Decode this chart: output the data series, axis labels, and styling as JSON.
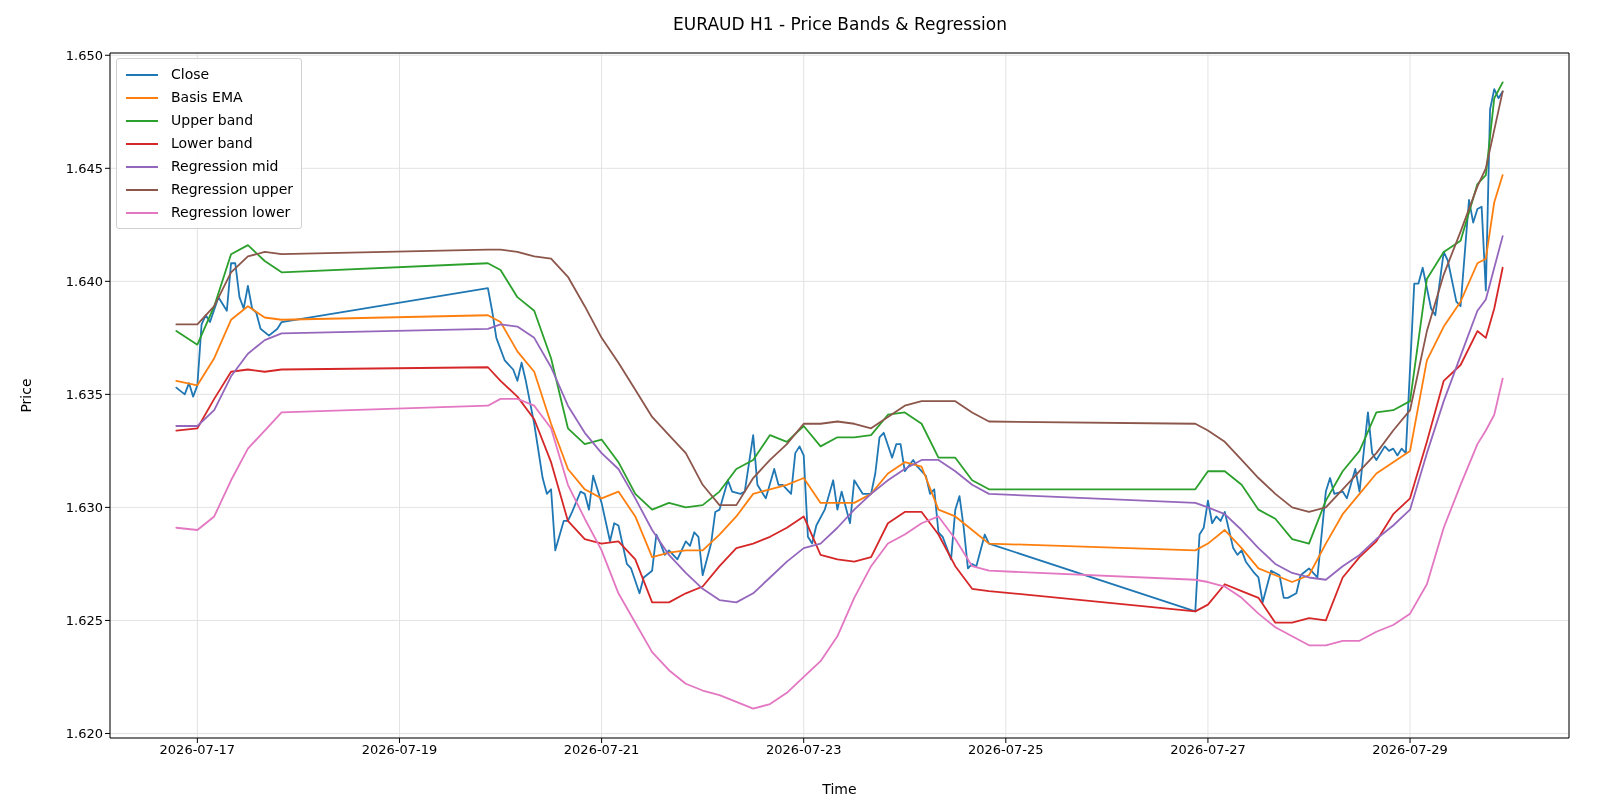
{
  "chart_data": {
    "type": "line",
    "title": "EURAUD H1 - Price Bands & Regression",
    "xlabel": "Time",
    "ylabel": "Price",
    "xlim": [
      "2026-07-16T03:15",
      "2026-07-30T13:45"
    ],
    "xticks": [
      "2026-07-17",
      "2026-07-19",
      "2026-07-21",
      "2026-07-23",
      "2026-07-25",
      "2026-07-27",
      "2026-07-29"
    ],
    "ylim": [
      1.6198,
      1.6501
    ],
    "yticks": [
      {
        "value": 1.62,
        "label": "1.620"
      },
      {
        "value": 1.625,
        "label": "1.625"
      },
      {
        "value": 1.63,
        "label": "1.630"
      },
      {
        "value": 1.635,
        "label": "1.635"
      },
      {
        "value": 1.64,
        "label": "1.640"
      },
      {
        "value": 1.645,
        "label": "1.645"
      },
      {
        "value": 1.65,
        "label": "1.650"
      }
    ],
    "grid": true,
    "legend": "top left",
    "marker": "none",
    "line_style": "solid",
    "x": [
      "2026-07-16T19:00",
      "2026-07-17T00:00",
      "2026-07-17T04:00",
      "2026-07-17T08:00",
      "2026-07-17T12:00",
      "2026-07-17T16:00",
      "2026-07-17T20:00",
      "2026-07-19T21:00",
      "2026-07-20T00:00",
      "2026-07-20T04:00",
      "2026-07-20T08:00",
      "2026-07-20T12:00",
      "2026-07-20T16:00",
      "2026-07-20T20:00",
      "2026-07-21T00:00",
      "2026-07-21T04:00",
      "2026-07-21T08:00",
      "2026-07-21T12:00",
      "2026-07-21T16:00",
      "2026-07-21T20:00",
      "2026-07-22T00:00",
      "2026-07-22T04:00",
      "2026-07-22T08:00",
      "2026-07-22T12:00",
      "2026-07-22T16:00",
      "2026-07-22T20:00",
      "2026-07-23T00:00",
      "2026-07-23T04:00",
      "2026-07-23T08:00",
      "2026-07-23T12:00",
      "2026-07-23T16:00",
      "2026-07-23T20:00",
      "2026-07-24T00:00",
      "2026-07-24T04:00",
      "2026-07-24T08:00",
      "2026-07-24T12:00",
      "2026-07-24T16:00",
      "2026-07-24T20:00",
      "2026-07-26T21:00",
      "2026-07-27T00:00",
      "2026-07-27T04:00",
      "2026-07-27T08:00",
      "2026-07-27T12:00",
      "2026-07-27T16:00",
      "2026-07-27T20:00",
      "2026-07-28T00:00",
      "2026-07-28T04:00",
      "2026-07-28T08:00",
      "2026-07-28T12:00",
      "2026-07-28T16:00",
      "2026-07-28T20:00",
      "2026-07-29T00:00",
      "2026-07-29T04:00",
      "2026-07-29T08:00",
      "2026-07-29T12:00",
      "2026-07-29T16:00",
      "2026-07-29T18:00",
      "2026-07-29T20:00",
      "2026-07-29T22:00"
    ],
    "series": [
      {
        "name": "Close",
        "color": "#1f77b4",
        "x": [
          "2026-07-16T19:00",
          "2026-07-16T21:00",
          "2026-07-16T22:00",
          "2026-07-16T23:00",
          "2026-07-17T00:00",
          "2026-07-17T01:00",
          "2026-07-17T02:00",
          "2026-07-17T03:00",
          "2026-07-17T05:00",
          "2026-07-17T07:00",
          "2026-07-17T08:00",
          "2026-07-17T09:00",
          "2026-07-17T10:00",
          "2026-07-17T11:00",
          "2026-07-17T12:00",
          "2026-07-17T13:00",
          "2026-07-17T14:00",
          "2026-07-17T15:00",
          "2026-07-17T17:00",
          "2026-07-17T19:00",
          "2026-07-17T20:00",
          "2026-07-19T21:00",
          "2026-07-19T22:00",
          "2026-07-19T23:00",
          "2026-07-20T01:00",
          "2026-07-20T03:00",
          "2026-07-20T04:00",
          "2026-07-20T05:00",
          "2026-07-20T06:00",
          "2026-07-20T08:00",
          "2026-07-20T10:00",
          "2026-07-20T11:00",
          "2026-07-20T12:00",
          "2026-07-20T13:00",
          "2026-07-20T15:00",
          "2026-07-20T16:00",
          "2026-07-20T17:00",
          "2026-07-20T19:00",
          "2026-07-20T20:00",
          "2026-07-20T21:00",
          "2026-07-20T22:00",
          "2026-07-21T00:00",
          "2026-07-21T02:00",
          "2026-07-21T03:00",
          "2026-07-21T04:00",
          "2026-07-21T06:00",
          "2026-07-21T07:00",
          "2026-07-21T09:00",
          "2026-07-21T10:00",
          "2026-07-21T12:00",
          "2026-07-21T13:00",
          "2026-07-21T14:00",
          "2026-07-21T15:00",
          "2026-07-21T16:00",
          "2026-07-21T18:00",
          "2026-07-21T20:00",
          "2026-07-21T21:00",
          "2026-07-21T22:00",
          "2026-07-21T23:00",
          "2026-07-22T00:00",
          "2026-07-22T02:00",
          "2026-07-22T03:00",
          "2026-07-22T04:00",
          "2026-07-22T06:00",
          "2026-07-22T07:00",
          "2026-07-22T09:00",
          "2026-07-22T10:00",
          "2026-07-22T12:00",
          "2026-07-22T13:00",
          "2026-07-22T15:00",
          "2026-07-22T17:00",
          "2026-07-22T18:00",
          "2026-07-22T19:00",
          "2026-07-22T21:00",
          "2026-07-22T22:00",
          "2026-07-22T23:00",
          "2026-07-23T00:00",
          "2026-07-23T01:00",
          "2026-07-23T02:00",
          "2026-07-23T03:00",
          "2026-07-23T05:00",
          "2026-07-23T07:00",
          "2026-07-23T08:00",
          "2026-07-23T09:00",
          "2026-07-23T11:00",
          "2026-07-23T12:00",
          "2026-07-23T14:00",
          "2026-07-23T16:00",
          "2026-07-23T17:00",
          "2026-07-23T18:00",
          "2026-07-23T19:00",
          "2026-07-23T21:00",
          "2026-07-23T22:00",
          "2026-07-23T23:00",
          "2026-07-24T00:00",
          "2026-07-24T02:00",
          "2026-07-24T03:00",
          "2026-07-24T05:00",
          "2026-07-24T06:00",
          "2026-07-24T07:00",
          "2026-07-24T08:00",
          "2026-07-24T09:00",
          "2026-07-24T11:00",
          "2026-07-24T12:00",
          "2026-07-24T13:00",
          "2026-07-24T14:00",
          "2026-07-24T15:00",
          "2026-07-24T16:00",
          "2026-07-24T17:00",
          "2026-07-24T19:00",
          "2026-07-24T20:00",
          "2026-07-26T21:00",
          "2026-07-26T22:00",
          "2026-07-26T23:00",
          "2026-07-27T00:00",
          "2026-07-27T01:00",
          "2026-07-27T02:00",
          "2026-07-27T03:00",
          "2026-07-27T04:00",
          "2026-07-27T05:00",
          "2026-07-27T06:00",
          "2026-07-27T07:00",
          "2026-07-27T08:00",
          "2026-07-27T09:00",
          "2026-07-27T11:00",
          "2026-07-27T12:00",
          "2026-07-27T13:00",
          "2026-07-27T15:00",
          "2026-07-27T17:00",
          "2026-07-27T18:00",
          "2026-07-27T19:00",
          "2026-07-27T21:00",
          "2026-07-27T22:00",
          "2026-07-28T00:00",
          "2026-07-28T02:00",
          "2026-07-28T04:00",
          "2026-07-28T05:00",
          "2026-07-28T06:00",
          "2026-07-28T08:00",
          "2026-07-28T09:00",
          "2026-07-28T11:00",
          "2026-07-28T12:00",
          "2026-07-28T14:00",
          "2026-07-28T15:00",
          "2026-07-28T16:00",
          "2026-07-28T18:00",
          "2026-07-28T19:00",
          "2026-07-28T20:00",
          "2026-07-28T21:00",
          "2026-07-28T22:00",
          "2026-07-28T23:00",
          "2026-07-29T01:00",
          "2026-07-29T02:00",
          "2026-07-29T03:00",
          "2026-07-29T05:00",
          "2026-07-29T06:00",
          "2026-07-29T08:00",
          "2026-07-29T09:00",
          "2026-07-29T11:00",
          "2026-07-29T12:00",
          "2026-07-29T14:00",
          "2026-07-29T15:00",
          "2026-07-29T16:00",
          "2026-07-29T17:00",
          "2026-07-29T18:00",
          "2026-07-29T19:00",
          "2026-07-29T20:00",
          "2026-07-29T21:00",
          "2026-07-29T22:00"
        ],
        "values": [
          1.6353,
          1.635,
          1.6355,
          1.6349,
          1.6354,
          1.6381,
          1.6385,
          1.6382,
          1.6393,
          1.6387,
          1.6408,
          1.6408,
          1.6393,
          1.6388,
          1.6398,
          1.6388,
          1.6386,
          1.6379,
          1.6376,
          1.6379,
          1.6382,
          1.6397,
          1.6387,
          1.6375,
          1.6365,
          1.6361,
          1.6356,
          1.6364,
          1.6356,
          1.6337,
          1.6313,
          1.6306,
          1.6308,
          1.6281,
          1.6294,
          1.6294,
          1.6298,
          1.6307,
          1.6306,
          1.6299,
          1.6314,
          1.6302,
          1.6285,
          1.6293,
          1.6292,
          1.6275,
          1.6273,
          1.6262,
          1.6269,
          1.6272,
          1.6288,
          1.6284,
          1.6279,
          1.6281,
          1.6277,
          1.6285,
          1.6283,
          1.6289,
          1.6287,
          1.627,
          1.6284,
          1.6298,
          1.6299,
          1.6312,
          1.6307,
          1.6306,
          1.6307,
          1.6332,
          1.631,
          1.6304,
          1.6317,
          1.631,
          1.631,
          1.6306,
          1.6324,
          1.6327,
          1.6323,
          1.6287,
          1.6284,
          1.6292,
          1.6299,
          1.6312,
          1.6299,
          1.6307,
          1.6293,
          1.6312,
          1.6306,
          1.6306,
          1.6315,
          1.6331,
          1.6333,
          1.6322,
          1.6328,
          1.6328,
          1.6316,
          1.6321,
          1.6318,
          1.6314,
          1.6306,
          1.6308,
          1.6289,
          1.6287,
          1.6277,
          1.6299,
          1.6305,
          1.6291,
          1.6273,
          1.6275,
          1.6274,
          1.6288,
          1.6284,
          1.6254,
          1.6288,
          1.6291,
          1.6303,
          1.6293,
          1.6296,
          1.6294,
          1.6298,
          1.629,
          1.6282,
          1.6279,
          1.6281,
          1.6276,
          1.6271,
          1.6269,
          1.6258,
          1.6272,
          1.627,
          1.626,
          1.626,
          1.6262,
          1.627,
          1.6273,
          1.6269,
          1.6307,
          1.6313,
          1.6306,
          1.6307,
          1.6304,
          1.6317,
          1.6307,
          1.6342,
          1.6324,
          1.6321,
          1.6327,
          1.6325,
          1.6326,
          1.6323,
          1.6326,
          1.6324,
          1.6399,
          1.6399,
          1.6406,
          1.6388,
          1.6385,
          1.6413,
          1.6409,
          1.6391,
          1.6389,
          1.6436,
          1.6426,
          1.6432,
          1.6433,
          1.6396,
          1.6476,
          1.6485,
          1.6481,
          1.6484
        ]
      },
      {
        "name": "Basis EMA",
        "color": "#ff7f0e",
        "values": [
          1.6356,
          1.6354,
          1.6366,
          1.6383,
          1.6389,
          1.6384,
          1.6383,
          1.6385,
          1.6382,
          1.6369,
          1.636,
          1.6337,
          1.6317,
          1.6308,
          1.6304,
          1.6307,
          1.6296,
          1.6278,
          1.628,
          1.6281,
          1.6281,
          1.6288,
          1.6296,
          1.6306,
          1.6308,
          1.631,
          1.6313,
          1.6302,
          1.6302,
          1.6302,
          1.6306,
          1.6315,
          1.632,
          1.6318,
          1.6299,
          1.6296,
          1.629,
          1.6284,
          1.6281,
          1.6284,
          1.629,
          1.6282,
          1.6273,
          1.627,
          1.6267,
          1.627,
          1.6284,
          1.6297,
          1.6306,
          1.6315,
          1.632,
          1.6325,
          1.6365,
          1.638,
          1.6391,
          1.6408,
          1.641,
          1.6435,
          1.6447
        ]
      },
      {
        "name": "Upper band",
        "color": "#2ca02c",
        "values": [
          1.6378,
          1.6372,
          1.6389,
          1.6412,
          1.6416,
          1.6409,
          1.6404,
          1.6408,
          1.6405,
          1.6393,
          1.6387,
          1.6366,
          1.6335,
          1.6328,
          1.633,
          1.632,
          1.6306,
          1.6299,
          1.6302,
          1.63,
          1.6301,
          1.6307,
          1.6317,
          1.6321,
          1.6332,
          1.6329,
          1.6336,
          1.6327,
          1.6331,
          1.6331,
          1.6332,
          1.6341,
          1.6342,
          1.6337,
          1.6322,
          1.6322,
          1.6312,
          1.6308,
          1.6308,
          1.6316,
          1.6316,
          1.631,
          1.6299,
          1.6295,
          1.6286,
          1.6284,
          1.6303,
          1.6316,
          1.6325,
          1.6342,
          1.6343,
          1.6347,
          1.6401,
          1.6413,
          1.6418,
          1.6443,
          1.6447,
          1.6481,
          1.6488
        ]
      },
      {
        "name": "Lower band",
        "color": "#d62728",
        "values": [
          1.6334,
          1.6335,
          1.6348,
          1.636,
          1.6361,
          1.636,
          1.6361,
          1.6362,
          1.6356,
          1.6349,
          1.6339,
          1.632,
          1.6294,
          1.6286,
          1.6284,
          1.6285,
          1.6277,
          1.6258,
          1.6258,
          1.6262,
          1.6265,
          1.6274,
          1.6282,
          1.6284,
          1.6287,
          1.6291,
          1.6296,
          1.6279,
          1.6277,
          1.6276,
          1.6278,
          1.6293,
          1.6298,
          1.6298,
          1.6288,
          1.6274,
          1.6264,
          1.6263,
          1.6254,
          1.6257,
          1.6266,
          1.6263,
          1.626,
          1.6249,
          1.6249,
          1.6251,
          1.625,
          1.6269,
          1.6278,
          1.6285,
          1.6297,
          1.6304,
          1.6329,
          1.6356,
          1.6363,
          1.6378,
          1.6375,
          1.6388,
          1.6406
        ]
      },
      {
        "name": "Regression mid",
        "color": "#9467bd",
        "values": [
          1.6336,
          1.6336,
          1.6343,
          1.6358,
          1.6368,
          1.6374,
          1.6377,
          1.6379,
          1.6381,
          1.638,
          1.6375,
          1.6362,
          1.6345,
          1.6333,
          1.6324,
          1.6317,
          1.6304,
          1.629,
          1.6279,
          1.6271,
          1.6264,
          1.6259,
          1.6258,
          1.6262,
          1.6269,
          1.6276,
          1.6282,
          1.6284,
          1.6291,
          1.6299,
          1.6306,
          1.6312,
          1.6317,
          1.6321,
          1.6321,
          1.6316,
          1.631,
          1.6306,
          1.6302,
          1.63,
          1.6297,
          1.629,
          1.6282,
          1.6275,
          1.6271,
          1.6269,
          1.6268,
          1.6274,
          1.6279,
          1.6286,
          1.6292,
          1.6299,
          1.6324,
          1.6347,
          1.6367,
          1.6387,
          1.6392,
          1.6406,
          1.642
        ]
      },
      {
        "name": "Regression upper",
        "color": "#8c564b",
        "values": [
          1.6381,
          1.6381,
          1.6389,
          1.6404,
          1.6411,
          1.6413,
          1.6412,
          1.6414,
          1.6414,
          1.6413,
          1.6411,
          1.641,
          1.6402,
          1.6389,
          1.6375,
          1.6364,
          1.6352,
          1.634,
          1.6332,
          1.6324,
          1.631,
          1.6301,
          1.6301,
          1.6313,
          1.6321,
          1.6328,
          1.6337,
          1.6337,
          1.6338,
          1.6337,
          1.6335,
          1.634,
          1.6345,
          1.6347,
          1.6347,
          1.6347,
          1.6342,
          1.6338,
          1.6337,
          1.6334,
          1.6329,
          1.6321,
          1.6313,
          1.6306,
          1.63,
          1.6298,
          1.63,
          1.6308,
          1.6316,
          1.6324,
          1.6334,
          1.6343,
          1.6378,
          1.6403,
          1.6422,
          1.6442,
          1.645,
          1.6467,
          1.6484
        ]
      },
      {
        "name": "Regression lower",
        "color": "#e377c2",
        "values": [
          1.6291,
          1.629,
          1.6296,
          1.6312,
          1.6326,
          1.6334,
          1.6342,
          1.6345,
          1.6348,
          1.6348,
          1.6345,
          1.6335,
          1.631,
          1.6295,
          1.6281,
          1.6262,
          1.6249,
          1.6236,
          1.6228,
          1.6222,
          1.6219,
          1.6217,
          1.6214,
          1.6211,
          1.6213,
          1.6218,
          1.6225,
          1.6232,
          1.6243,
          1.626,
          1.6274,
          1.6284,
          1.6288,
          1.6293,
          1.6296,
          1.6286,
          1.6274,
          1.6272,
          1.6268,
          1.6267,
          1.6265,
          1.626,
          1.6253,
          1.6247,
          1.6243,
          1.6239,
          1.6239,
          1.6241,
          1.6241,
          1.6245,
          1.6248,
          1.6253,
          1.6266,
          1.6291,
          1.631,
          1.6328,
          1.6334,
          1.6341,
          1.6357
        ]
      }
    ]
  }
}
